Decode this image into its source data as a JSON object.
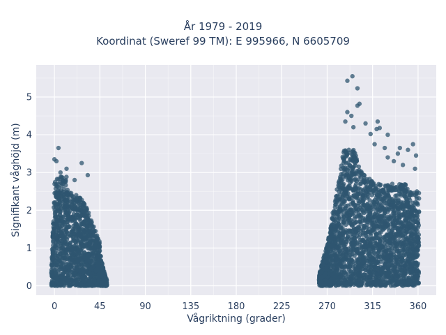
{
  "chart_data": {
    "type": "scatter",
    "title": "År 1979 - 2019",
    "subtitle": "Koordinat (Sweref 99 TM): E 995966, N 6605709",
    "xlabel": "Vågriktning (grader)",
    "ylabel": "Signifikant våghöjd (m)",
    "xlim": [
      -18,
      378
    ],
    "ylim": [
      -0.25,
      5.85
    ],
    "xticks": [
      0,
      45,
      90,
      135,
      180,
      225,
      270,
      315,
      360
    ],
    "yticks": [
      0,
      1,
      2,
      3,
      4,
      5
    ],
    "grid": true,
    "marker_color": "#2f5670",
    "plot_bg": "#e9e9f0",
    "clusters": [
      {
        "x_range": [
          -3,
          52
        ],
        "y_range": [
          0.0,
          3.7
        ],
        "peak_x": 10
      },
      {
        "x_range": [
          262,
          361
        ],
        "y_range": [
          0.0,
          5.6
        ],
        "peak_x": 293
      }
    ],
    "points": [
      {
        "x": 4,
        "y": 3.65
      },
      {
        "x": 0,
        "y": 3.35
      },
      {
        "x": 2,
        "y": 3.3
      },
      {
        "x": 27,
        "y": 3.25
      },
      {
        "x": 33,
        "y": 2.93
      },
      {
        "x": 12,
        "y": 3.1
      },
      {
        "x": 6,
        "y": 3.0
      },
      {
        "x": 20,
        "y": 2.8
      },
      {
        "x": 295,
        "y": 5.55
      },
      {
        "x": 290,
        "y": 5.43
      },
      {
        "x": 300,
        "y": 5.23
      },
      {
        "x": 302,
        "y": 4.82
      },
      {
        "x": 300,
        "y": 4.77
      },
      {
        "x": 290,
        "y": 4.6
      },
      {
        "x": 294,
        "y": 4.5
      },
      {
        "x": 308,
        "y": 4.3
      },
      {
        "x": 320,
        "y": 4.35
      },
      {
        "x": 322,
        "y": 4.18
      },
      {
        "x": 319,
        "y": 4.15
      },
      {
        "x": 330,
        "y": 4.0
      },
      {
        "x": 313,
        "y": 4.02
      },
      {
        "x": 317,
        "y": 3.75
      },
      {
        "x": 327,
        "y": 3.65
      },
      {
        "x": 342,
        "y": 3.65
      },
      {
        "x": 355,
        "y": 3.75
      },
      {
        "x": 350,
        "y": 3.6
      },
      {
        "x": 358,
        "y": 3.45
      },
      {
        "x": 340,
        "y": 3.5
      },
      {
        "x": 330,
        "y": 3.4
      },
      {
        "x": 336,
        "y": 3.3
      },
      {
        "x": 345,
        "y": 3.2
      },
      {
        "x": 357,
        "y": 3.1
      },
      {
        "x": 288,
        "y": 4.35
      },
      {
        "x": 296,
        "y": 4.2
      }
    ]
  }
}
